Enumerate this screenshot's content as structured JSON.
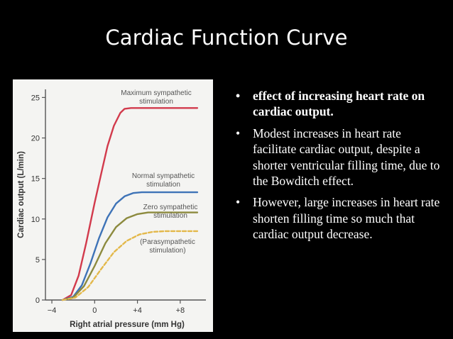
{
  "slide": {
    "title": "Cardiac Function Curve",
    "bullets": [
      "effect of increasing heart rate on cardiac output.",
      "Modest increases in heart rate facilitate cardiac output, despite a shorter ventricular filling time, due to the Bowditch effect.",
      "However, large increases in heart rate shorten filling time so much that cardiac output decrease."
    ]
  },
  "chart_data": {
    "type": "line",
    "xlabel": "Right atrial pressure (mm Hg)",
    "ylabel": "Cardiac output (L/min)",
    "xlim": [
      -4.6,
      10.4
    ],
    "ylim": [
      0,
      26
    ],
    "x_ticks": [
      -4,
      0,
      4,
      8
    ],
    "x_tick_labels": [
      "−4",
      "0",
      "+4",
      "+8"
    ],
    "y_ticks": [
      0,
      5,
      10,
      15,
      20,
      25
    ],
    "grid": false,
    "series": [
      {
        "name": "Maximum sympathetic stimulation",
        "label_lines": [
          "Maximum sympathetic",
          "stimulation"
        ],
        "color": "#d23a4c",
        "dashed": false,
        "x": [
          -3.0,
          -2.2,
          -1.5,
          -0.8,
          0.0,
          0.6,
          1.2,
          1.8,
          2.4,
          2.8,
          3.4,
          4.0,
          6.0,
          9.6
        ],
        "y": [
          0.0,
          0.6,
          3.0,
          7.0,
          12.0,
          15.5,
          19.0,
          21.5,
          23.1,
          23.6,
          23.7,
          23.7,
          23.7,
          23.7
        ]
      },
      {
        "name": "Normal sympathetic stimulation",
        "label_lines": [
          "Normal sympathetic",
          "stimulation"
        ],
        "color": "#3e73b7",
        "dashed": false,
        "x": [
          -3.0,
          -2.0,
          -1.2,
          -0.4,
          0.4,
          1.2,
          2.0,
          2.8,
          3.6,
          4.4,
          6.0,
          9.6
        ],
        "y": [
          0.0,
          0.4,
          1.8,
          4.5,
          7.6,
          10.2,
          11.9,
          12.8,
          13.2,
          13.3,
          13.3,
          13.3
        ]
      },
      {
        "name": "Zero sympathetic stimulation",
        "label_lines": [
          "Zero sympathetic",
          "stimulation"
        ],
        "color": "#8c8a3e",
        "dashed": false,
        "x": [
          -3.0,
          -2.0,
          -1.0,
          0.0,
          1.0,
          2.0,
          3.0,
          4.0,
          5.0,
          6.0,
          9.6
        ],
        "y": [
          0.0,
          0.3,
          1.7,
          4.2,
          7.0,
          9.0,
          10.1,
          10.6,
          10.8,
          10.8,
          10.8
        ]
      },
      {
        "name": "(Parasympathetic stimulation)",
        "label_lines": [
          "(Parasympathetic",
          "stimulation)"
        ],
        "color": "#e3b84a",
        "dashed": true,
        "x": [
          -3.0,
          -1.8,
          -0.6,
          0.6,
          1.8,
          3.0,
          4.2,
          5.4,
          6.6,
          9.6
        ],
        "y": [
          0.0,
          0.3,
          1.6,
          3.8,
          5.9,
          7.3,
          8.1,
          8.4,
          8.5,
          8.5
        ]
      }
    ]
  }
}
